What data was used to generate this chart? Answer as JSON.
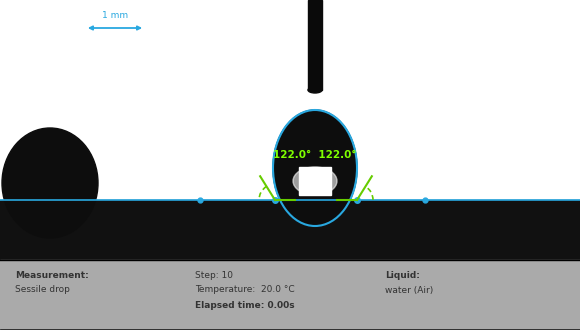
{
  "fig_width": 5.8,
  "fig_height": 3.3,
  "dpi": 100,
  "bg_color": "#ffffff",
  "scale_bar_color": "#29a8e0",
  "scale_bar_label": "1 mm",
  "drop_outline_color": "#29a8e0",
  "surface_color": "#29a8e0",
  "angle_label": "122.0°  122.0°",
  "angle_label_color": "#7fff00",
  "dashed_arc_color": "#66cc00",
  "contact_dot_color": "#29a8e0",
  "info_panel_color": "#aaaaaa",
  "info_text_color": "#333333",
  "measurement_label": "Measurement:",
  "measurement_value": "Sessile drop",
  "step_label": "Step: 10",
  "temperature_label": "Temperature:  20.0 °C",
  "elapsed_label": "Elapsed time: 0.00s",
  "liquid_label": "Liquid:",
  "liquid_value": "water (Air)"
}
